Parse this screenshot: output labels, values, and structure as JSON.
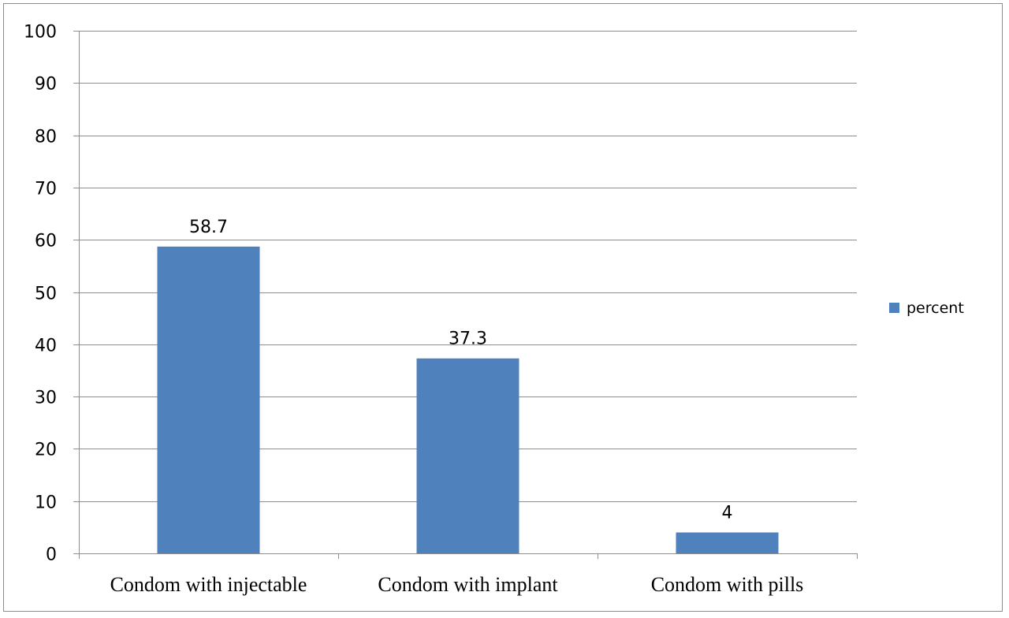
{
  "chart_data": {
    "type": "bar",
    "categories": [
      "Condom with injectable",
      "Condom with implant",
      "Condom with pills"
    ],
    "series": [
      {
        "name": "percent",
        "values": [
          58.7,
          37.3,
          4
        ],
        "data_labels": [
          "58.7",
          "37.3",
          "4"
        ],
        "color": "#4f81bd"
      }
    ],
    "ylim": [
      0,
      100
    ],
    "yticks": [
      0,
      10,
      20,
      30,
      40,
      50,
      60,
      70,
      80,
      90,
      100
    ],
    "grid": true,
    "legend": {
      "position": "right",
      "entries": [
        "percent"
      ]
    }
  }
}
